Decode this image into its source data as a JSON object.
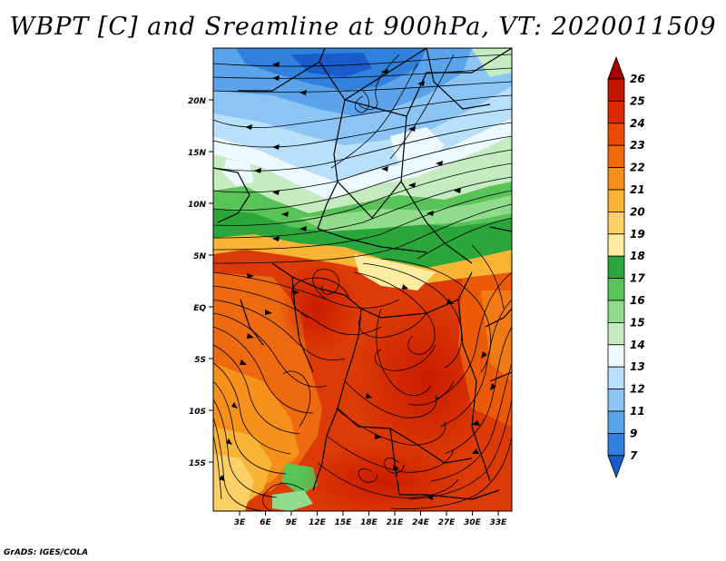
{
  "title": "WBPT [C] and Sreamline at 900hPa, VT: 2020011509",
  "footer": "GrADS: IGES/COLA",
  "map": {
    "lat_ticks": [
      "20N",
      "15N",
      "10N",
      "5N",
      "EQ",
      "5S",
      "10S",
      "15S"
    ],
    "lon_ticks": [
      "3E",
      "6E",
      "9E",
      "12E",
      "15E",
      "18E",
      "21E",
      "24E",
      "27E",
      "30E",
      "33E"
    ]
  },
  "colorbar": {
    "labels": [
      "26",
      "25",
      "24",
      "23",
      "22",
      "21",
      "20",
      "19",
      "18",
      "17",
      "16",
      "15",
      "14",
      "13",
      "12",
      "11",
      "9",
      "7"
    ],
    "colors": [
      "#a50000",
      "#c31400",
      "#dc2a00",
      "#ea4a05",
      "#f06a0a",
      "#f5901a",
      "#f8b434",
      "#fbd066",
      "#fdeca0",
      "#2aa63a",
      "#58c458",
      "#90dc8c",
      "#c4ecc0",
      "#ecf9ff",
      "#b8e0fa",
      "#8cc4f4",
      "#5ca4ea",
      "#3080dc",
      "#1a5ccc"
    ]
  }
}
